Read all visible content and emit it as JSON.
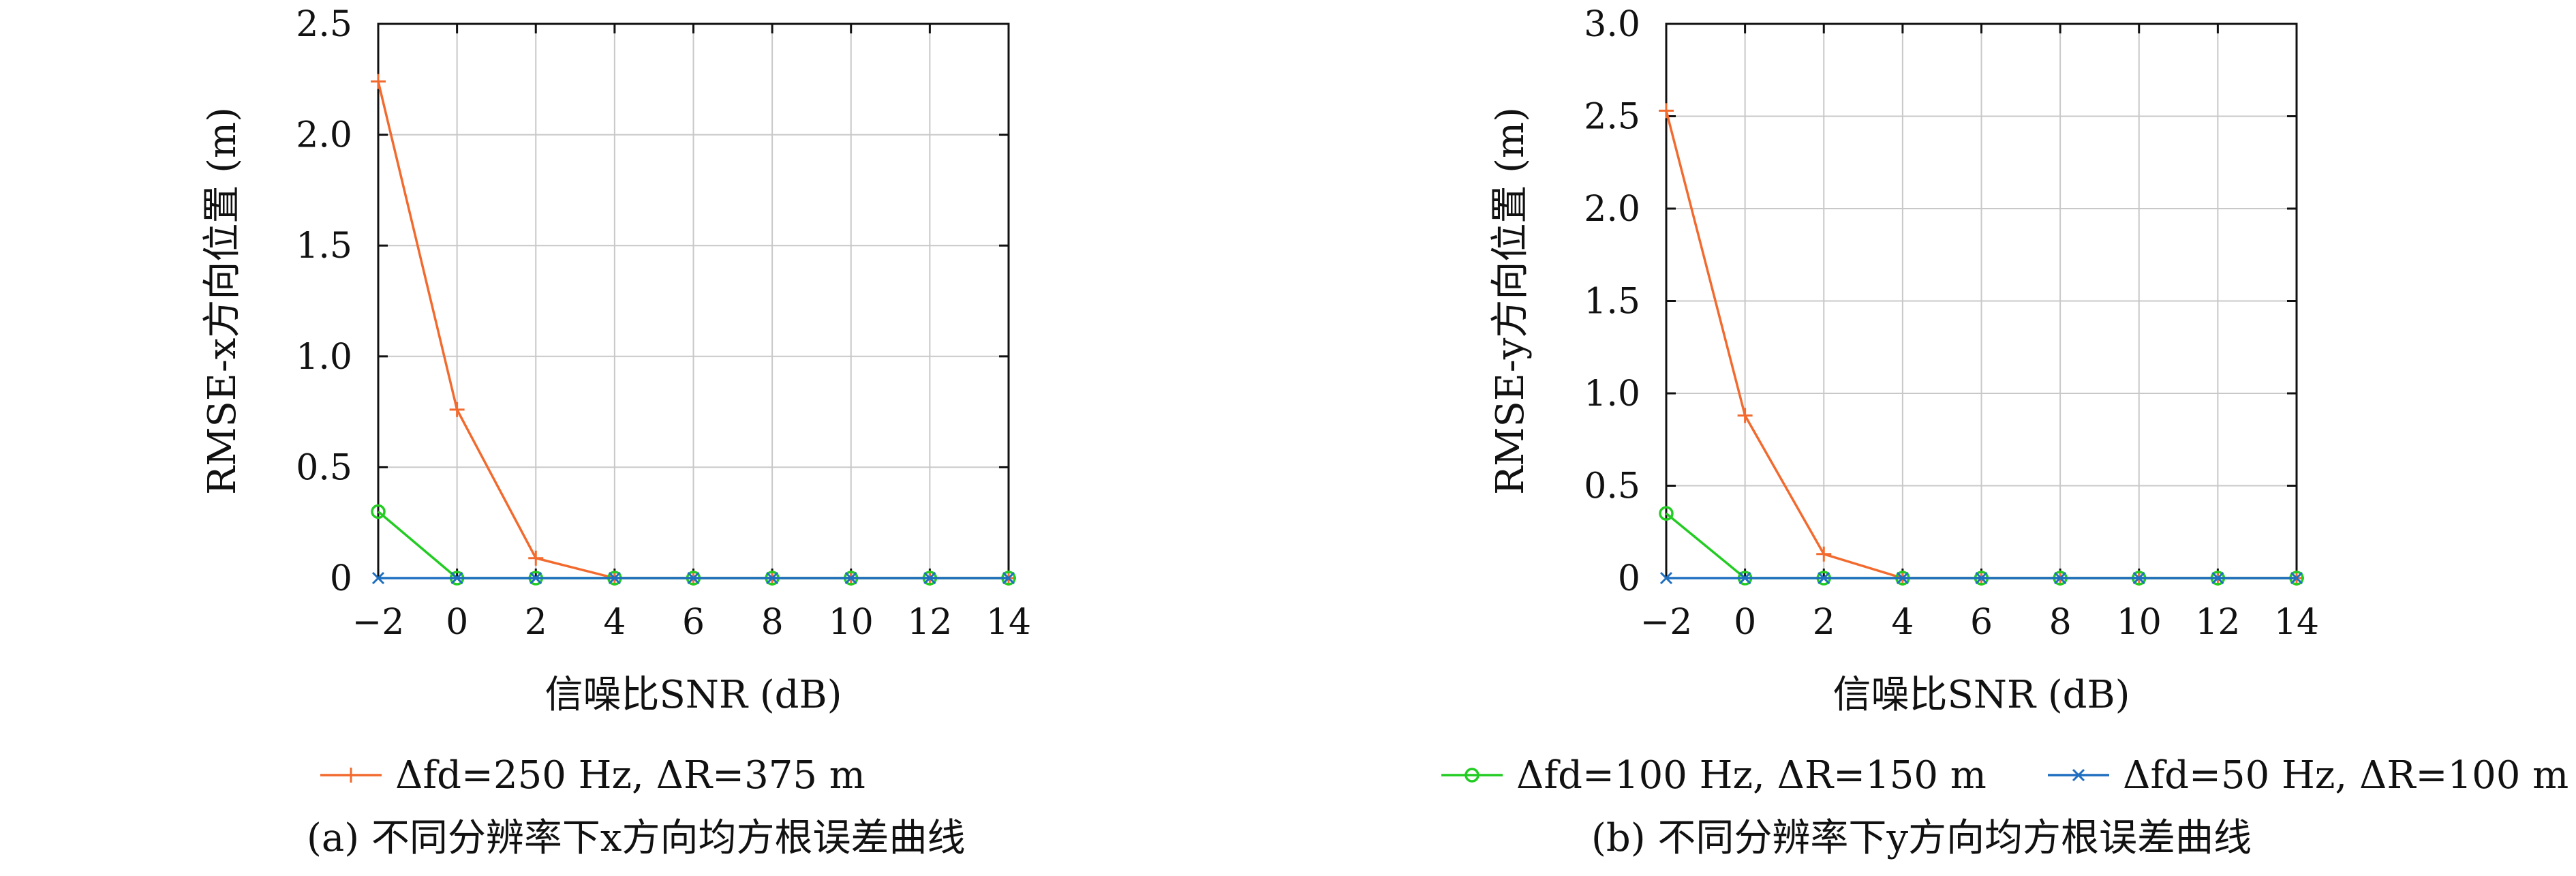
{
  "chart_data": [
    {
      "type": "line",
      "panel_label": "(a) 不同分辨率下x方向均方根误差曲线",
      "xlabel": "信噪比SNR (dB)",
      "ylabel": "RMSE-x方向位置 (m)",
      "x": [
        -2,
        0,
        2,
        4,
        6,
        8,
        10,
        12,
        14
      ],
      "x_tick_labels": [
        "−2",
        "0",
        "2",
        "4",
        "6",
        "8",
        "10",
        "12",
        "14"
      ],
      "xlim": [
        -2,
        14
      ],
      "ylim": [
        0,
        2.5
      ],
      "y_ticks": [
        0,
        0.5,
        1.0,
        1.5,
        2.0,
        2.5
      ],
      "y_tick_labels": [
        "0",
        "0.5",
        "1.0",
        "1.5",
        "2.0",
        "2.5"
      ],
      "grid": true,
      "series": [
        {
          "name": "Δfd=250 Hz, ΔR=375 m",
          "marker": "plus",
          "color": "#f26a2e",
          "values": [
            2.24,
            0.76,
            0.09,
            0,
            0,
            0,
            0,
            0,
            0
          ]
        },
        {
          "name": "Δfd=100 Hz, ΔR=150 m",
          "marker": "circle",
          "color": "#22cc22",
          "values": [
            0.3,
            0,
            0,
            0,
            0,
            0,
            0,
            0,
            0
          ]
        },
        {
          "name": "Δfd=50 Hz, ΔR=100 m",
          "marker": "x",
          "color": "#1f6fc0",
          "values": [
            0,
            0,
            0,
            0,
            0,
            0,
            0,
            0,
            0
          ]
        }
      ]
    },
    {
      "type": "line",
      "panel_label": "(b) 不同分辨率下y方向均方根误差曲线",
      "xlabel": "信噪比SNR (dB)",
      "ylabel": "RMSE-y方向位置 (m)",
      "x": [
        -2,
        0,
        2,
        4,
        6,
        8,
        10,
        12,
        14
      ],
      "x_tick_labels": [
        "−2",
        "0",
        "2",
        "4",
        "6",
        "8",
        "10",
        "12",
        "14"
      ],
      "xlim": [
        -2,
        14
      ],
      "ylim": [
        0,
        3.0
      ],
      "y_ticks": [
        0,
        0.5,
        1.0,
        1.5,
        2.0,
        2.5,
        3.0
      ],
      "y_tick_labels": [
        "0",
        "0.5",
        "1.0",
        "1.5",
        "2.0",
        "2.5",
        "3.0"
      ],
      "grid": true,
      "series": [
        {
          "name": "Δfd=250 Hz, ΔR=375 m",
          "marker": "plus",
          "color": "#f26a2e",
          "values": [
            2.53,
            0.88,
            0.13,
            0,
            0,
            0,
            0,
            0,
            0
          ]
        },
        {
          "name": "Δfd=100 Hz, ΔR=150 m",
          "marker": "circle",
          "color": "#22cc22",
          "values": [
            0.35,
            0,
            0,
            0,
            0,
            0,
            0,
            0,
            0
          ]
        },
        {
          "name": "Δfd=50 Hz, ΔR=100 m",
          "marker": "x",
          "color": "#1f6fc0",
          "values": [
            0,
            0,
            0,
            0,
            0,
            0,
            0,
            0,
            0
          ]
        }
      ]
    }
  ],
  "legend": {
    "placement": "bottom",
    "entries": [
      {
        "marker": "plus",
        "color": "#f26a2e",
        "label": "Δfd=250 Hz, ΔR=375 m"
      },
      {
        "marker": "circle",
        "color": "#22cc22",
        "label": "Δfd=100 Hz, ΔR=150 m"
      },
      {
        "marker": "x",
        "color": "#1f6fc0",
        "label": "Δfd=50 Hz, ΔR=100 m"
      }
    ]
  }
}
